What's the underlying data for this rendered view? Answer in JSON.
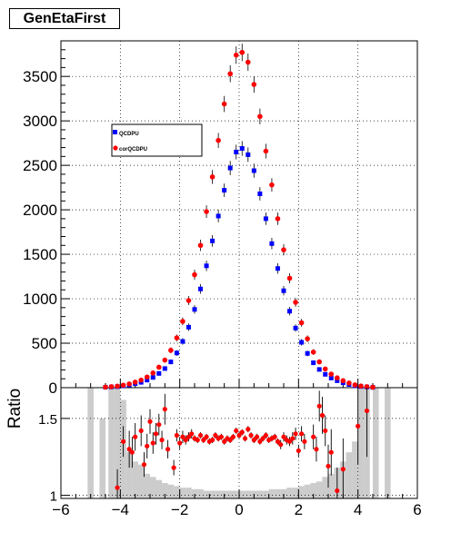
{
  "title": "GenEtaFirst",
  "colors": {
    "series1": "#0000ff",
    "series2": "#ff0000",
    "ratio_fill": "#cccccc",
    "axis": "#000000"
  },
  "chart_data": [
    {
      "type": "scatter",
      "title": "GenEtaFirst",
      "xlim": [
        -6,
        6
      ],
      "ylim": [
        0,
        3900
      ],
      "yticks": [
        0,
        500,
        1000,
        1500,
        2000,
        2500,
        3000,
        3500
      ],
      "xticks": [
        -6,
        -4,
        -2,
        0,
        2,
        4,
        6
      ],
      "grid": true,
      "legend_placement": "upper-left",
      "series": [
        {
          "name": "QCDPU",
          "x": [
            -4.5,
            -4.3,
            -4.1,
            -3.9,
            -3.7,
            -3.5,
            -3.3,
            -3.1,
            -2.9,
            -2.7,
            -2.5,
            -2.3,
            -2.1,
            -1.9,
            -1.7,
            -1.5,
            -1.3,
            -1.1,
            -0.9,
            -0.7,
            -0.5,
            -0.3,
            -0.1,
            0.1,
            0.3,
            0.5,
            0.7,
            0.9,
            1.1,
            1.3,
            1.5,
            1.7,
            1.9,
            2.1,
            2.3,
            2.5,
            2.7,
            2.9,
            3.1,
            3.3,
            3.5,
            3.7,
            3.9,
            4.1,
            4.3,
            4.5
          ],
          "y": [
            5,
            8,
            12,
            20,
            30,
            45,
            60,
            85,
            115,
            160,
            215,
            290,
            390,
            520,
            680,
            880,
            1110,
            1370,
            1650,
            1930,
            2220,
            2470,
            2650,
            2690,
            2620,
            2440,
            2180,
            1900,
            1620,
            1340,
            1090,
            860,
            670,
            510,
            385,
            280,
            205,
            150,
            108,
            78,
            55,
            36,
            22,
            13,
            8,
            4
          ]
        },
        {
          "name": "corQCDPU",
          "x": [
            -4.5,
            -4.3,
            -4.1,
            -3.9,
            -3.7,
            -3.5,
            -3.3,
            -3.1,
            -2.9,
            -2.7,
            -2.5,
            -2.3,
            -2.1,
            -1.9,
            -1.7,
            -1.5,
            -1.3,
            -1.1,
            -0.9,
            -0.7,
            -0.5,
            -0.3,
            -0.1,
            0.1,
            0.3,
            0.5,
            0.7,
            0.9,
            1.1,
            1.3,
            1.5,
            1.7,
            1.9,
            2.1,
            2.3,
            2.5,
            2.7,
            2.9,
            3.1,
            3.3,
            3.5,
            3.7,
            3.9,
            4.1,
            4.3,
            4.5
          ],
          "y": [
            6,
            11,
            17,
            28,
            42,
            62,
            85,
            120,
            165,
            230,
            310,
            420,
            560,
            745,
            980,
            1270,
            1600,
            1980,
            2370,
            2780,
            3190,
            3530,
            3740,
            3770,
            3660,
            3410,
            3050,
            2660,
            2280,
            1900,
            1550,
            1230,
            960,
            730,
            550,
            400,
            290,
            210,
            152,
            110,
            78,
            52,
            31,
            18,
            11,
            5
          ]
        }
      ]
    },
    {
      "type": "scatter",
      "ylabel": "Ratio",
      "xlim": [
        -6,
        6
      ],
      "ylim": [
        0.98,
        1.7
      ],
      "yticks": [
        1,
        1.5
      ],
      "xticks": [
        -6,
        -4,
        -2,
        0,
        2,
        4,
        6
      ],
      "grid": true,
      "series": [
        {
          "x": [
            -4.1,
            -3.9,
            -3.7,
            -3.6,
            -3.5,
            -3.3,
            -3.2,
            -3.1,
            -3.0,
            -2.9,
            -2.8,
            -2.7,
            -2.6,
            -2.5,
            -2.4,
            -2.2,
            -2.1,
            -2.0,
            -1.9,
            -1.8,
            -1.7,
            -1.6,
            -1.5,
            -1.4,
            -1.3,
            -1.2,
            -1.1,
            -1.0,
            -0.9,
            -0.8,
            -0.7,
            -0.6,
            -0.5,
            -0.4,
            -0.3,
            -0.2,
            -0.1,
            0.0,
            0.1,
            0.2,
            0.3,
            0.4,
            0.5,
            0.6,
            0.7,
            0.8,
            0.9,
            1.0,
            1.1,
            1.2,
            1.3,
            1.4,
            1.5,
            1.6,
            1.7,
            1.8,
            1.9,
            2.0,
            2.1,
            2.2,
            2.5,
            2.6,
            2.7,
            2.8,
            2.9,
            3.0,
            3.1,
            3.3,
            3.5,
            4.0,
            4.3
          ],
          "y": [
            1.05,
            1.35,
            1.3,
            1.28,
            1.38,
            1.42,
            1.2,
            1.32,
            1.48,
            1.34,
            1.4,
            1.46,
            1.36,
            1.56,
            1.3,
            1.18,
            1.39,
            1.34,
            1.38,
            1.36,
            1.38,
            1.4,
            1.37,
            1.36,
            1.39,
            1.36,
            1.38,
            1.35,
            1.36,
            1.39,
            1.37,
            1.38,
            1.35,
            1.37,
            1.36,
            1.38,
            1.42,
            1.39,
            1.41,
            1.37,
            1.43,
            1.39,
            1.36,
            1.38,
            1.35,
            1.37,
            1.39,
            1.36,
            1.37,
            1.38,
            1.35,
            1.33,
            1.38,
            1.36,
            1.35,
            1.37,
            1.4,
            1.29,
            1.4,
            1.35,
            1.38,
            1.3,
            1.58,
            1.52,
            1.42,
            1.19,
            1.28,
            1.03,
            1.17,
            1.45,
            1.55
          ],
          "err": [
            0.12,
            0.1,
            0.12,
            0.1,
            0.09,
            0.1,
            0.08,
            0.08,
            0.08,
            0.07,
            0.07,
            0.07,
            0.06,
            0.1,
            0.06,
            0.05,
            0.04,
            0.04,
            0.04,
            0.03,
            0.03,
            0.03,
            0.02,
            0.02,
            0.02,
            0.02,
            0.02,
            0.02,
            0.02,
            0.02,
            0.02,
            0.02,
            0.02,
            0.02,
            0.02,
            0.02,
            0.02,
            0.02,
            0.02,
            0.02,
            0.02,
            0.02,
            0.02,
            0.02,
            0.02,
            0.02,
            0.02,
            0.02,
            0.02,
            0.02,
            0.02,
            0.03,
            0.03,
            0.03,
            0.03,
            0.04,
            0.04,
            0.04,
            0.05,
            0.05,
            0.08,
            0.08,
            0.1,
            0.12,
            0.1,
            0.14,
            0.15,
            0.15,
            0.2,
            0.25,
            0.3
          ]
        }
      ],
      "gray_bars": {
        "x": [
          -5.0,
          -4.6,
          -4.3,
          -4.1,
          -3.9,
          -3.7,
          -3.5,
          -3.3,
          -3.1,
          -2.9,
          -2.7,
          -2.5,
          -2.3,
          -2.1,
          -1.9,
          -1.7,
          -1.5,
          -1.3,
          -1.1,
          -0.9,
          -0.7,
          -0.5,
          -0.3,
          -0.1,
          0.1,
          0.3,
          0.5,
          0.7,
          0.9,
          1.1,
          1.3,
          1.5,
          1.7,
          1.9,
          2.1,
          2.3,
          2.5,
          2.7,
          2.9,
          3.1,
          3.3,
          3.5,
          3.7,
          3.9,
          4.1,
          4.3,
          4.6,
          5.0
        ],
        "height": [
          1.7,
          1.5,
          1.7,
          1.7,
          1.62,
          1.28,
          1.22,
          1.2,
          1.14,
          1.12,
          1.1,
          1.08,
          1.07,
          1.06,
          1.05,
          1.05,
          1.04,
          1.04,
          1.03,
          1.03,
          1.03,
          1.03,
          1.03,
          1.03,
          1.03,
          1.03,
          1.03,
          1.03,
          1.03,
          1.04,
          1.04,
          1.04,
          1.05,
          1.05,
          1.06,
          1.07,
          1.08,
          1.09,
          1.12,
          1.14,
          1.18,
          1.22,
          1.28,
          1.35,
          1.7,
          1.7,
          1.7,
          1.7
        ]
      }
    }
  ],
  "legend": [
    {
      "label": "QCDPU"
    },
    {
      "label": "corQCDPU"
    }
  ]
}
